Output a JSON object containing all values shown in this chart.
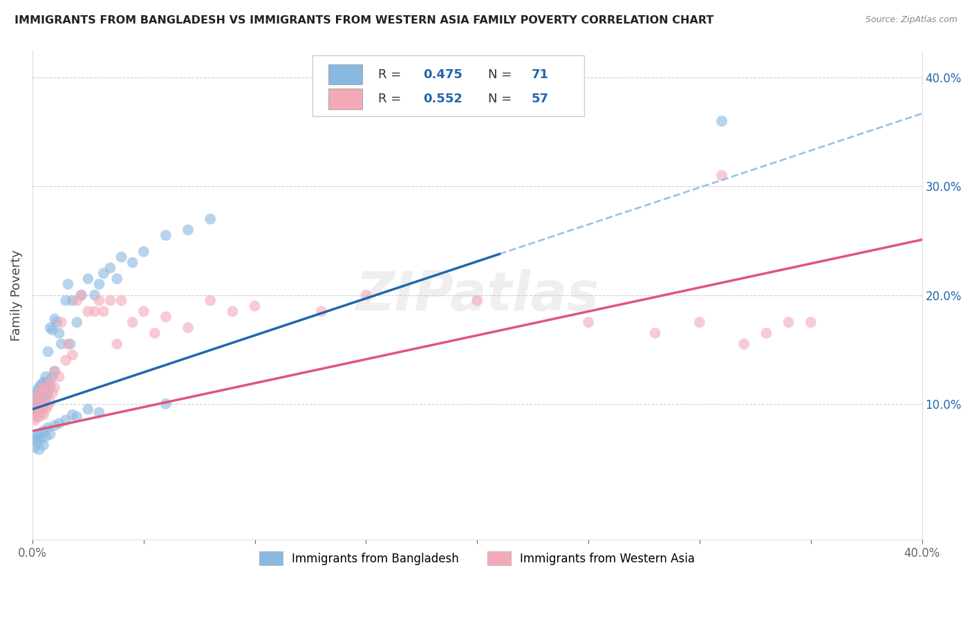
{
  "title": "IMMIGRANTS FROM BANGLADESH VS IMMIGRANTS FROM WESTERN ASIA FAMILY POVERTY CORRELATION CHART",
  "source": "Source: ZipAtlas.com",
  "ylabel": "Family Poverty",
  "legend_label_blue": "Immigrants from Bangladesh",
  "legend_label_pink": "Immigrants from Western Asia",
  "R_blue": "0.475",
  "N_blue": "71",
  "R_pink": "0.552",
  "N_pink": "57",
  "blue_color": "#89b8e0",
  "pink_color": "#f4a8b8",
  "trend_blue_color": "#2166ac",
  "trend_pink_color": "#e05578",
  "trend_dashed_color": "#90b8e0",
  "xlim": [
    0.0,
    0.4
  ],
  "ylim": [
    -0.025,
    0.425
  ],
  "blue_trend_slope": 0.68,
  "blue_trend_intercept": 0.095,
  "blue_trend_solid_xend": 0.21,
  "pink_trend_slope": 0.44,
  "pink_trend_intercept": 0.075,
  "scatter_blue_x": [
    0.001,
    0.001,
    0.001,
    0.002,
    0.002,
    0.002,
    0.002,
    0.003,
    0.003,
    0.003,
    0.003,
    0.004,
    0.004,
    0.004,
    0.005,
    0.005,
    0.005,
    0.006,
    0.006,
    0.006,
    0.007,
    0.007,
    0.007,
    0.008,
    0.008,
    0.009,
    0.009,
    0.01,
    0.01,
    0.011,
    0.012,
    0.013,
    0.015,
    0.016,
    0.017,
    0.018,
    0.02,
    0.022,
    0.025,
    0.028,
    0.03,
    0.032,
    0.035,
    0.038,
    0.04,
    0.045,
    0.05,
    0.06,
    0.07,
    0.08,
    0.001,
    0.001,
    0.002,
    0.002,
    0.003,
    0.003,
    0.004,
    0.005,
    0.005,
    0.006,
    0.007,
    0.008,
    0.01,
    0.012,
    0.015,
    0.018,
    0.02,
    0.025,
    0.03,
    0.06,
    0.31
  ],
  "scatter_blue_y": [
    0.095,
    0.1,
    0.108,
    0.09,
    0.095,
    0.102,
    0.112,
    0.095,
    0.098,
    0.105,
    0.115,
    0.095,
    0.102,
    0.118,
    0.098,
    0.108,
    0.12,
    0.105,
    0.115,
    0.125,
    0.11,
    0.12,
    0.148,
    0.115,
    0.17,
    0.125,
    0.168,
    0.13,
    0.178,
    0.175,
    0.165,
    0.155,
    0.195,
    0.21,
    0.155,
    0.195,
    0.175,
    0.2,
    0.215,
    0.2,
    0.21,
    0.22,
    0.225,
    0.215,
    0.235,
    0.23,
    0.24,
    0.255,
    0.26,
    0.27,
    0.06,
    0.068,
    0.065,
    0.07,
    0.058,
    0.072,
    0.068,
    0.062,
    0.075,
    0.07,
    0.078,
    0.072,
    0.08,
    0.082,
    0.085,
    0.09,
    0.088,
    0.095,
    0.092,
    0.1,
    0.36
  ],
  "scatter_pink_x": [
    0.001,
    0.001,
    0.001,
    0.002,
    0.002,
    0.002,
    0.003,
    0.003,
    0.003,
    0.004,
    0.004,
    0.004,
    0.005,
    0.005,
    0.005,
    0.006,
    0.006,
    0.007,
    0.007,
    0.008,
    0.008,
    0.009,
    0.01,
    0.01,
    0.012,
    0.013,
    0.015,
    0.016,
    0.018,
    0.02,
    0.022,
    0.025,
    0.028,
    0.03,
    0.032,
    0.035,
    0.038,
    0.04,
    0.045,
    0.05,
    0.055,
    0.06,
    0.07,
    0.08,
    0.09,
    0.1,
    0.13,
    0.15,
    0.2,
    0.25,
    0.28,
    0.3,
    0.31,
    0.32,
    0.33,
    0.34,
    0.35
  ],
  "scatter_pink_y": [
    0.085,
    0.092,
    0.1,
    0.088,
    0.095,
    0.105,
    0.088,
    0.095,
    0.108,
    0.092,
    0.1,
    0.112,
    0.09,
    0.098,
    0.115,
    0.095,
    0.108,
    0.098,
    0.115,
    0.102,
    0.12,
    0.11,
    0.115,
    0.13,
    0.125,
    0.175,
    0.14,
    0.155,
    0.145,
    0.195,
    0.2,
    0.185,
    0.185,
    0.195,
    0.185,
    0.195,
    0.155,
    0.195,
    0.175,
    0.185,
    0.165,
    0.18,
    0.17,
    0.195,
    0.185,
    0.19,
    0.185,
    0.2,
    0.195,
    0.175,
    0.165,
    0.175,
    0.31,
    0.155,
    0.165,
    0.175,
    0.175
  ]
}
